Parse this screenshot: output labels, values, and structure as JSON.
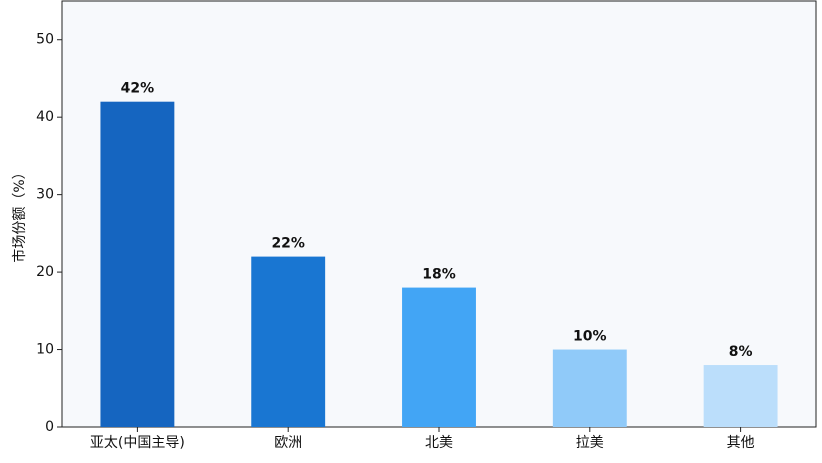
{
  "chart_data": {
    "type": "bar",
    "y_label": "市场份额（%）",
    "categories": [
      "亚太(中国主导)",
      "欧洲",
      "北美",
      "拉美",
      "其他"
    ],
    "values": [
      42,
      22,
      18,
      10,
      8
    ],
    "value_labels": [
      "42%",
      "22%",
      "18%",
      "10%",
      "8%"
    ],
    "colors": [
      "#1565c0",
      "#1976d2",
      "#42a5f5",
      "#90caf9",
      "#bbdefb"
    ],
    "ylim": [
      0,
      55
    ],
    "yticks": [
      0,
      10,
      20,
      30,
      40,
      50
    ],
    "grid": false
  }
}
